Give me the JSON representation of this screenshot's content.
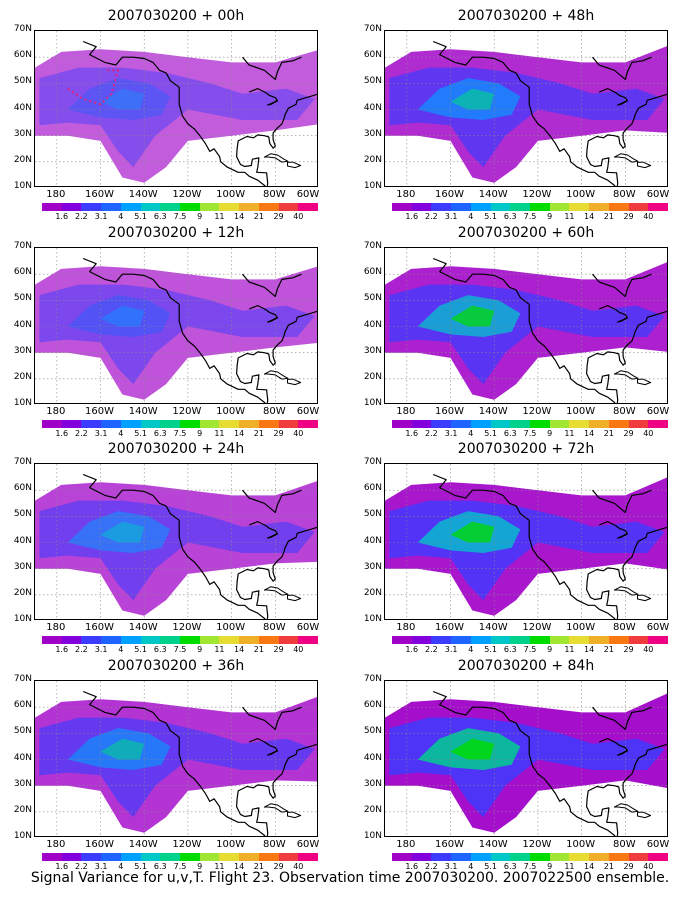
{
  "panels": [
    {
      "title": "2007030200 + 00h",
      "intensity": 0.2
    },
    {
      "title": "2007030200 + 48h",
      "intensity": 0.62
    },
    {
      "title": "2007030200 + 12h",
      "intensity": 0.28
    },
    {
      "title": "2007030200 + 60h",
      "intensity": 0.72
    },
    {
      "title": "2007030200 + 24h",
      "intensity": 0.42
    },
    {
      "title": "2007030200 + 72h",
      "intensity": 0.8
    },
    {
      "title": "2007030200 + 36h",
      "intensity": 0.55
    },
    {
      "title": "2007030200 + 84h",
      "intensity": 0.88
    }
  ],
  "lat_labels": [
    "70N",
    "60N",
    "50N",
    "40N",
    "30N",
    "20N",
    "10N"
  ],
  "lon_labels": [
    "180",
    "160W",
    "140W",
    "120W",
    "100W",
    "80W",
    "60W"
  ],
  "colorbar": {
    "labels": [
      "1.6",
      "2.2",
      "3.1",
      "4",
      "5.1",
      "6.3",
      "7.5",
      "9",
      "11",
      "14",
      "21",
      "29",
      "40"
    ],
    "colors": [
      "#a000c8",
      "#8200dc",
      "#3c3cff",
      "#1e64ff",
      "#00a0ff",
      "#00c8c8",
      "#00d28c",
      "#00dc00",
      "#a0e632",
      "#e6dc32",
      "#f0af28",
      "#fa7814",
      "#f03c3c",
      "#f00082"
    ]
  },
  "caption": "Signal Variance for u,v,T. Flight 23. Observation time 2007030200. 2007022500 ensemble."
}
